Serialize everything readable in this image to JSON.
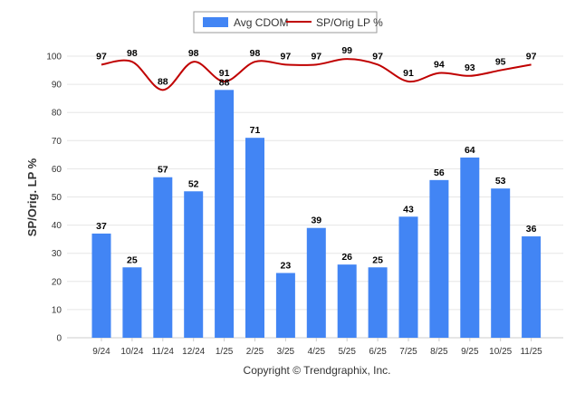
{
  "chart_data": {
    "type": "bar",
    "title": "",
    "ylabel": "SP/Orig. LP %",
    "xlabel": "",
    "ylim": [
      0,
      100
    ],
    "yticks": [
      0,
      10,
      20,
      30,
      40,
      50,
      60,
      70,
      80,
      90,
      100
    ],
    "grid": true,
    "legend_position": "top-center",
    "categories": [
      "9/24",
      "10/24",
      "11/24",
      "12/24",
      "1/25",
      "2/25",
      "3/25",
      "4/25",
      "5/25",
      "6/25",
      "7/25",
      "8/25",
      "9/25",
      "10/25",
      "11/25"
    ],
    "series": [
      {
        "name": "Avg CDOM",
        "type": "bar",
        "color": "#4285f4",
        "values": [
          37,
          25,
          57,
          52,
          88,
          71,
          23,
          39,
          26,
          25,
          43,
          56,
          64,
          53,
          36
        ]
      },
      {
        "name": "SP/Orig LP %",
        "type": "line",
        "color": "#c00000",
        "values": [
          97,
          98,
          88,
          98,
          91,
          98,
          97,
          97,
          99,
          97,
          91,
          94,
          93,
          95,
          97
        ]
      }
    ],
    "footer": "Copyright © Trendgraphix, Inc."
  }
}
